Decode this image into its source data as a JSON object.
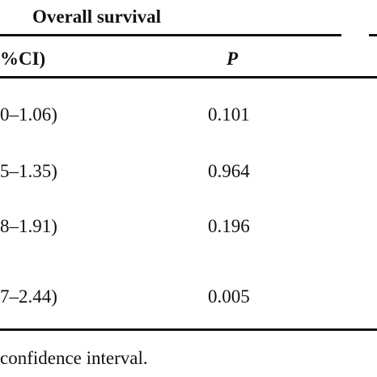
{
  "table": {
    "group_header": "Overall survival",
    "columns": {
      "ci": "%CI)",
      "p": "P"
    },
    "rows": [
      {
        "ci": "0–1.06)",
        "p": "0.101"
      },
      {
        "ci": "5–1.35)",
        "p": "0.964"
      },
      {
        "ci": "8–1.91)",
        "p": "0.196"
      },
      {
        "ci": "7–2.44)",
        "p": "0.005"
      }
    ]
  },
  "footnote": "confidence interval."
}
